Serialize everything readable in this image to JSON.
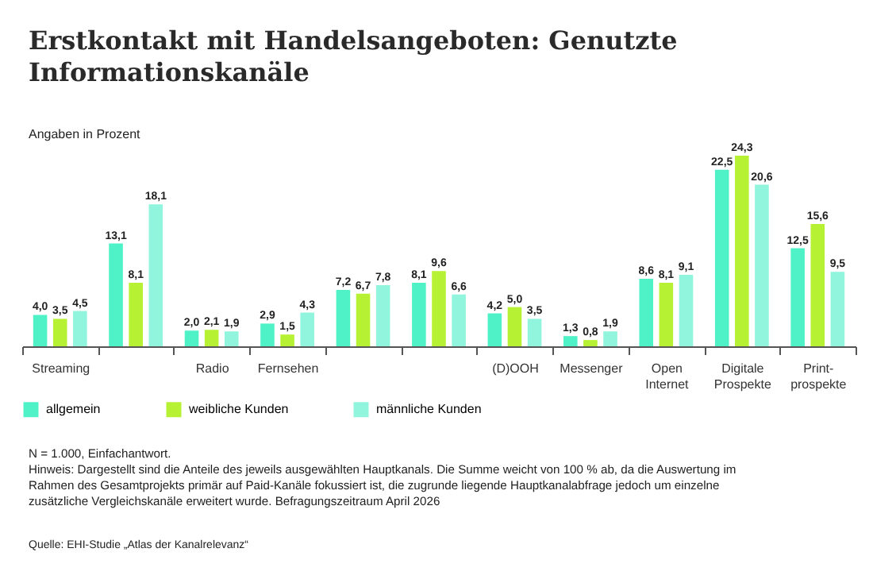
{
  "chart_data": {
    "type": "bar",
    "title": "Erstkontakt mit Handelsangeboten: Genutzte Informationskanäle",
    "subtitle": "Angaben in Prozent",
    "categories": [
      "Streaming",
      null,
      "Radio",
      "Fernsehen",
      null,
      null,
      "(D)OOH",
      "Messenger",
      "Open Internet",
      "Digitale Prospekte",
      "Print-prospekte"
    ],
    "series": [
      {
        "name": "allgemein",
        "color": "#4ef2c6",
        "values": [
          4.0,
          13.1,
          2.0,
          2.9,
          7.2,
          8.1,
          4.2,
          1.3,
          8.6,
          22.5,
          12.5
        ],
        "value_labels": [
          "4,0",
          "13,1",
          "2,0",
          "2,9",
          "7,2",
          "8,1",
          "4,2",
          "1,3",
          "8,6",
          "22,5",
          "12,5"
        ]
      },
      {
        "name": "weibliche Kunden",
        "color": "#b6f233",
        "values": [
          3.5,
          8.1,
          2.1,
          1.5,
          6.7,
          9.6,
          5.0,
          0.8,
          8.1,
          24.3,
          15.6
        ],
        "value_labels": [
          "3,5",
          "8,1",
          "2,1",
          "1,5",
          "6,7",
          "9,6",
          "5,0",
          "0,8",
          "8,1",
          "24,3",
          "15,6"
        ]
      },
      {
        "name": "männliche Kunden",
        "color": "#90f5dc",
        "values": [
          4.5,
          18.1,
          1.9,
          4.3,
          7.8,
          6.6,
          3.5,
          1.9,
          9.1,
          20.6,
          9.5
        ],
        "value_labels": [
          "4,5",
          "18,1",
          "1,9",
          "4,3",
          "7,8",
          "6,6",
          "3,5",
          "1,9",
          "9,1",
          "20,6",
          "9,5"
        ]
      }
    ],
    "legend": "bottom",
    "annotations": [
      "N = 1.000, Einfachantwort.",
      "Hinweis: Dargestellt sind die Anteile des jeweils ausgewählten Hauptkanals. Die Summe weicht von 100 % ab, da die Auswertung im Rahmen des Gesamtprojekts primär auf Paid-Kanäle fokussiert ist, die zugrunde liegende Hauptkanalabfrage jedoch um einzelne zusätzliche Vergleichskanäle erweitert wurde. Befragungszeitraum April 2026",
      "Quelle: EHI-Studie „Atlas der Kanalrelevanz“"
    ]
  }
}
